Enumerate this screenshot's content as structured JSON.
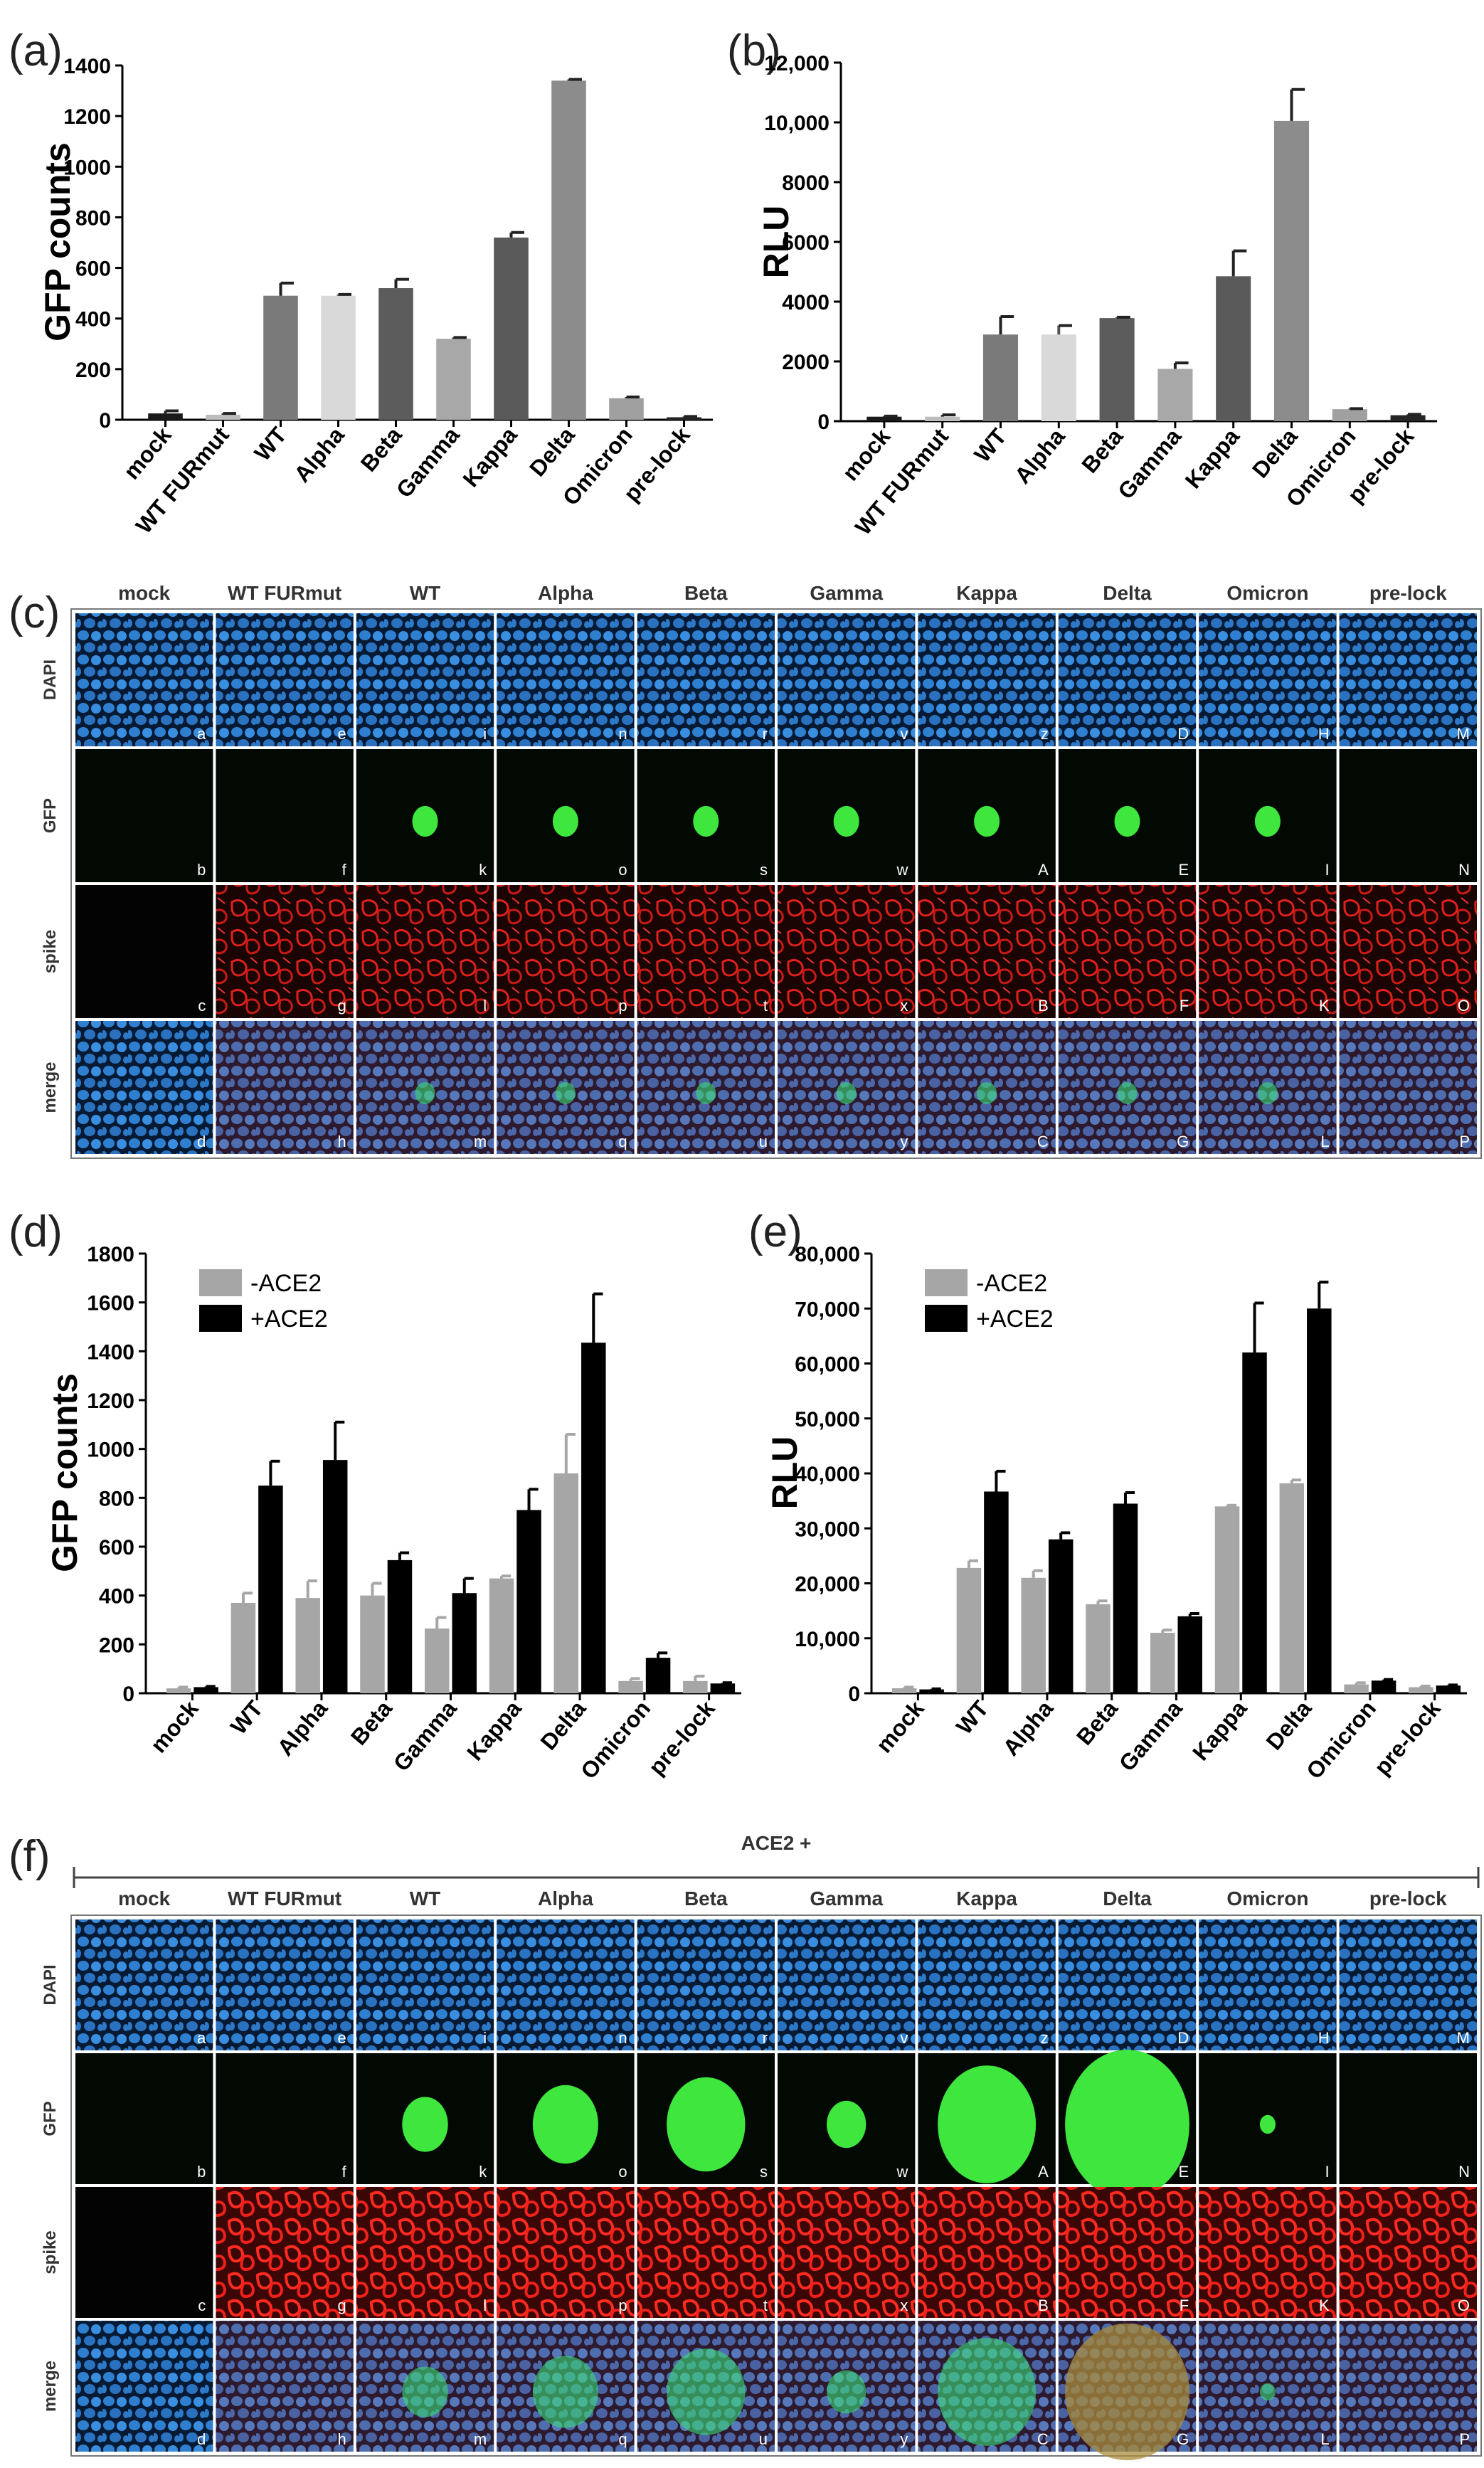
{
  "panels": {
    "a": "(a)",
    "b": "(b)",
    "c": "(c)",
    "d": "(d)",
    "e": "(e)",
    "f": "(f)"
  },
  "colors": {
    "mock": "#1a1a1a",
    "WT FURmut": "#bdbdbd",
    "WT": "#7a7a7a",
    "Alpha": "#d9d9d9",
    "Beta": "#5c5c5c",
    "Gamma": "#a8a8a8",
    "Kappa": "#5a5a5a",
    "Delta": "#8c8c8c",
    "Omicron": "#a0a0a0",
    "pre-lock": "#262626",
    "minus_ace2": "#a6a6a6",
    "plus_ace2": "#000000"
  },
  "chart_data": [
    {
      "id": "a",
      "type": "bar",
      "ylabel": "GFP counts",
      "categories": [
        "mock",
        "WT FURmut",
        "WT",
        "Alpha",
        "Beta",
        "Gamma",
        "Kappa",
        "Delta",
        "Omicron",
        "pre-lock"
      ],
      "values": [
        25,
        20,
        490,
        490,
        520,
        320,
        720,
        1340,
        85,
        10
      ],
      "errors": [
        10,
        5,
        50,
        5,
        35,
        5,
        20,
        5,
        5,
        3
      ],
      "ylim": [
        0,
        1400
      ],
      "yticks": [
        "0",
        "200",
        "400",
        "600",
        "800",
        "1000",
        "1200",
        "1400"
      ]
    },
    {
      "id": "b",
      "type": "bar",
      "ylabel": "RLU",
      "categories": [
        "mock",
        "WT FURmut",
        "WT",
        "Alpha",
        "Beta",
        "Gamma",
        "Kappa",
        "Delta",
        "Omicron",
        "pre-lock"
      ],
      "values": [
        150,
        150,
        2900,
        2900,
        3450,
        1750,
        4850,
        10050,
        400,
        200
      ],
      "errors": [
        20,
        60,
        600,
        300,
        30,
        200,
        850,
        1050,
        20,
        30
      ],
      "ylim": [
        0,
        12000
      ],
      "yticks": [
        "0",
        "2000",
        "4000",
        "6000",
        "8000",
        "10,000",
        "12,000"
      ]
    },
    {
      "id": "d",
      "type": "bar",
      "ylabel": "GFP counts",
      "categories": [
        "mock",
        "WT",
        "Alpha",
        "Beta",
        "Gamma",
        "Kappa",
        "Delta",
        "Omicron",
        "pre-lock"
      ],
      "series": [
        {
          "name": "-ACE2",
          "values": [
            20,
            370,
            390,
            400,
            265,
            470,
            900,
            50,
            50
          ],
          "errors": [
            5,
            40,
            70,
            50,
            45,
            10,
            160,
            10,
            20
          ]
        },
        {
          "name": "+ACE2",
          "values": [
            25,
            850,
            955,
            545,
            410,
            750,
            1435,
            145,
            40
          ],
          "errors": [
            3,
            100,
            155,
            30,
            60,
            85,
            200,
            20,
            3
          ]
        }
      ],
      "ylim": [
        0,
        1800
      ],
      "yticks": [
        "0",
        "200",
        "400",
        "600",
        "800",
        "1000",
        "1200",
        "1400",
        "1600",
        "1800"
      ],
      "legend": "top-left"
    },
    {
      "id": "e",
      "type": "bar",
      "ylabel": "RLU",
      "categories": [
        "mock",
        "WT",
        "Alpha",
        "Beta",
        "Gamma",
        "Kappa",
        "Delta",
        "Omicron",
        "pre-lock"
      ],
      "series": [
        {
          "name": "-ACE2",
          "values": [
            900,
            22800,
            21000,
            16200,
            11000,
            34000,
            38200,
            1600,
            1100
          ],
          "errors": [
            200,
            1300,
            1300,
            600,
            500,
            200,
            600,
            300,
            200
          ]
        },
        {
          "name": "+ACE2",
          "values": [
            700,
            36700,
            28000,
            34500,
            14000,
            62000,
            70000,
            2300,
            1400
          ],
          "errors": [
            100,
            3700,
            1200,
            2000,
            500,
            9000,
            4800,
            200,
            100
          ]
        }
      ],
      "ylim": [
        0,
        80000
      ],
      "yticks": [
        "0",
        "10,000",
        "20,000",
        "30,000",
        "40,000",
        "50,000",
        "60,000",
        "70,000",
        "80,000"
      ],
      "legend": "top-left"
    }
  ],
  "micrographs": {
    "columns": [
      "mock",
      "WT FURmut",
      "WT",
      "Alpha",
      "Beta",
      "Gamma",
      "Kappa",
      "Delta",
      "Omicron",
      "pre-lock"
    ],
    "rows": [
      "DAPI",
      "GFP",
      "spike",
      "merge"
    ],
    "c_letters": [
      [
        "a",
        "e",
        "i",
        "n",
        "r",
        "v",
        "z",
        "D",
        "H",
        "M"
      ],
      [
        "b",
        "f",
        "k",
        "o",
        "s",
        "w",
        "A",
        "E",
        "I",
        "N"
      ],
      [
        "c",
        "g",
        "l",
        "p",
        "t",
        "x",
        "B",
        "F",
        "K",
        "O"
      ],
      [
        "d",
        "h",
        "m",
        "q",
        "u",
        "y",
        "C",
        "G",
        "L",
        "P"
      ]
    ],
    "f_letters": [
      [
        "a",
        "e",
        "i",
        "n",
        "r",
        "v",
        "z",
        "D",
        "H",
        "M"
      ],
      [
        "b",
        "f",
        "k",
        "o",
        "s",
        "w",
        "A",
        "E",
        "I",
        "N"
      ],
      [
        "c",
        "g",
        "l",
        "p",
        "t",
        "x",
        "B",
        "F",
        "K",
        "O"
      ],
      [
        "d",
        "h",
        "m",
        "q",
        "u",
        "y",
        "C",
        "G",
        "L",
        "P"
      ]
    ],
    "f_header": "ACE2 +"
  }
}
